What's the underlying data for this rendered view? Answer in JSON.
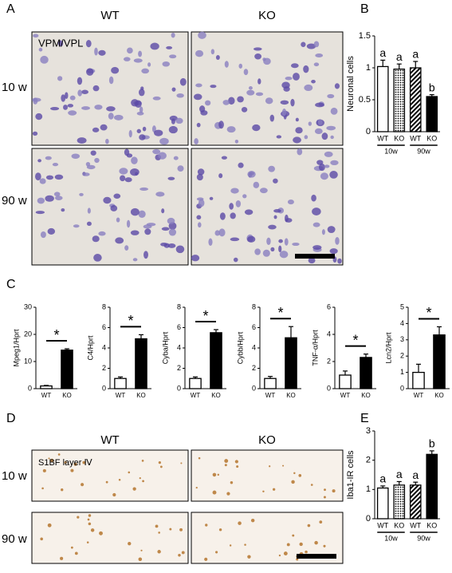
{
  "panel_labels": [
    "A",
    "B",
    "C",
    "D",
    "E"
  ],
  "panel_a": {
    "columns": [
      "WT",
      "KO"
    ],
    "rows": [
      "10 w",
      "90 w"
    ],
    "region": "VPM/VPL"
  },
  "panel_d": {
    "columns": [
      "WT",
      "KO"
    ],
    "rows": [
      "10 w",
      "90 w"
    ],
    "region": "S1BF layer Ⅳ"
  },
  "chart_data": [
    {
      "type": "bar",
      "ylabel": "Neuronal cells",
      "categories": [
        "WT",
        "KO",
        "WT",
        "KO"
      ],
      "groups": [
        "10w",
        "90w"
      ],
      "values": [
        1.02,
        0.98,
        1.0,
        0.55
      ],
      "errors": [
        0.1,
        0.08,
        0.1,
        0.03
      ],
      "annotations": [
        "a",
        "a",
        "a",
        "b"
      ],
      "patterns": [
        "open",
        "dotted",
        "hatched",
        "solid"
      ],
      "ylim": [
        0,
        1.5
      ],
      "yticks": [
        0,
        0.5,
        1,
        1.5
      ]
    },
    {
      "type": "bar",
      "ylabel": "Mpeg1/Hprt",
      "categories": [
        "WT",
        "KO"
      ],
      "values": [
        1,
        14.2
      ],
      "errors": [
        0.2,
        0.5
      ],
      "annotation": "*",
      "patterns": [
        "open",
        "solid"
      ],
      "ylim": [
        0,
        30
      ],
      "yticks": [
        0,
        10,
        20,
        30
      ]
    },
    {
      "type": "bar",
      "ylabel": "C4/Hprt",
      "categories": [
        "WT",
        "KO"
      ],
      "values": [
        1,
        4.9
      ],
      "errors": [
        0.15,
        0.4
      ],
      "annotation": "*",
      "patterns": [
        "open",
        "solid"
      ],
      "ylim": [
        0,
        8
      ],
      "yticks": [
        0,
        2,
        4,
        6,
        8
      ]
    },
    {
      "type": "bar",
      "ylabel": "Cyba/Hprt",
      "categories": [
        "WT",
        "KO"
      ],
      "values": [
        1,
        5.5
      ],
      "errors": [
        0.15,
        0.3
      ],
      "annotation": "*",
      "patterns": [
        "open",
        "solid"
      ],
      "ylim": [
        0,
        8
      ],
      "yticks": [
        0,
        2,
        4,
        6,
        8
      ]
    },
    {
      "type": "bar",
      "ylabel": "Cybb/Hprt",
      "categories": [
        "WT",
        "KO"
      ],
      "values": [
        1,
        5.0
      ],
      "errors": [
        0.2,
        1.1
      ],
      "annotation": "*",
      "patterns": [
        "open",
        "solid"
      ],
      "ylim": [
        0,
        8
      ],
      "yticks": [
        0,
        2,
        4,
        6,
        8
      ]
    },
    {
      "type": "bar",
      "ylabel": "TNF-α/Hprt",
      "categories": [
        "WT",
        "KO"
      ],
      "values": [
        1,
        2.3
      ],
      "errors": [
        0.3,
        0.25
      ],
      "annotation": "*",
      "patterns": [
        "open",
        "solid"
      ],
      "ylim": [
        0,
        6
      ],
      "yticks": [
        0,
        2,
        4,
        6
      ]
    },
    {
      "type": "bar",
      "ylabel": "Lcn2/Hprt",
      "categories": [
        "WT",
        "KO"
      ],
      "values": [
        1,
        3.3
      ],
      "errors": [
        0.5,
        0.5
      ],
      "annotation": "*",
      "patterns": [
        "open",
        "solid"
      ],
      "ylim": [
        0,
        5
      ],
      "yticks": [
        0,
        1,
        2,
        3,
        4,
        5
      ]
    },
    {
      "type": "bar",
      "ylabel": "Iba1-IR cells",
      "categories": [
        "WT",
        "KO",
        "WT",
        "KO"
      ],
      "groups": [
        "10w",
        "90w"
      ],
      "values": [
        1.05,
        1.15,
        1.15,
        2.2
      ],
      "errors": [
        0.07,
        0.12,
        0.1,
        0.12
      ],
      "annotations": [
        "a",
        "a",
        "a",
        "b"
      ],
      "patterns": [
        "open",
        "dotted",
        "hatched",
        "solid"
      ],
      "ylim": [
        0,
        3
      ],
      "yticks": [
        0,
        1,
        2,
        3
      ]
    }
  ]
}
